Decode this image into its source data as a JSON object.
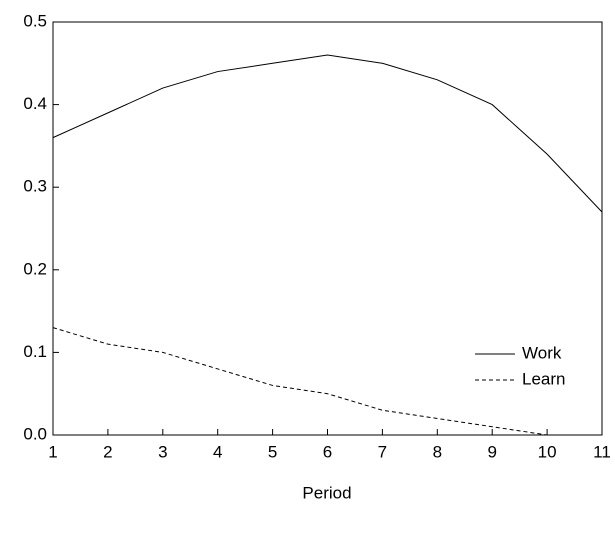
{
  "chart_data": {
    "type": "line",
    "xlabel": "Period",
    "x": [
      1,
      2,
      3,
      4,
      5,
      6,
      7,
      8,
      9,
      10,
      11
    ],
    "series": [
      {
        "name": "Work",
        "color": "#000000",
        "dash": "solid",
        "values": [
          0.36,
          0.39,
          0.42,
          0.44,
          0.45,
          0.46,
          0.45,
          0.43,
          0.4,
          0.34,
          0.27
        ]
      },
      {
        "name": "Learn",
        "color": "#000000",
        "dash": "dashed",
        "values": [
          0.13,
          0.11,
          0.1,
          0.08,
          0.06,
          0.05,
          0.03,
          0.02,
          0.01,
          0.0,
          0.0
        ]
      }
    ],
    "xlim": [
      1,
      11
    ],
    "xticks": [
      1,
      2,
      3,
      4,
      5,
      6,
      7,
      8,
      9,
      10,
      11
    ],
    "ylim": [
      0,
      0.5
    ],
    "yticks": [
      {
        "value": 0,
        "label": "0.0"
      },
      0.1,
      0.2,
      0.3,
      0.4,
      0.5
    ],
    "grid": false,
    "legend": "lower right"
  }
}
